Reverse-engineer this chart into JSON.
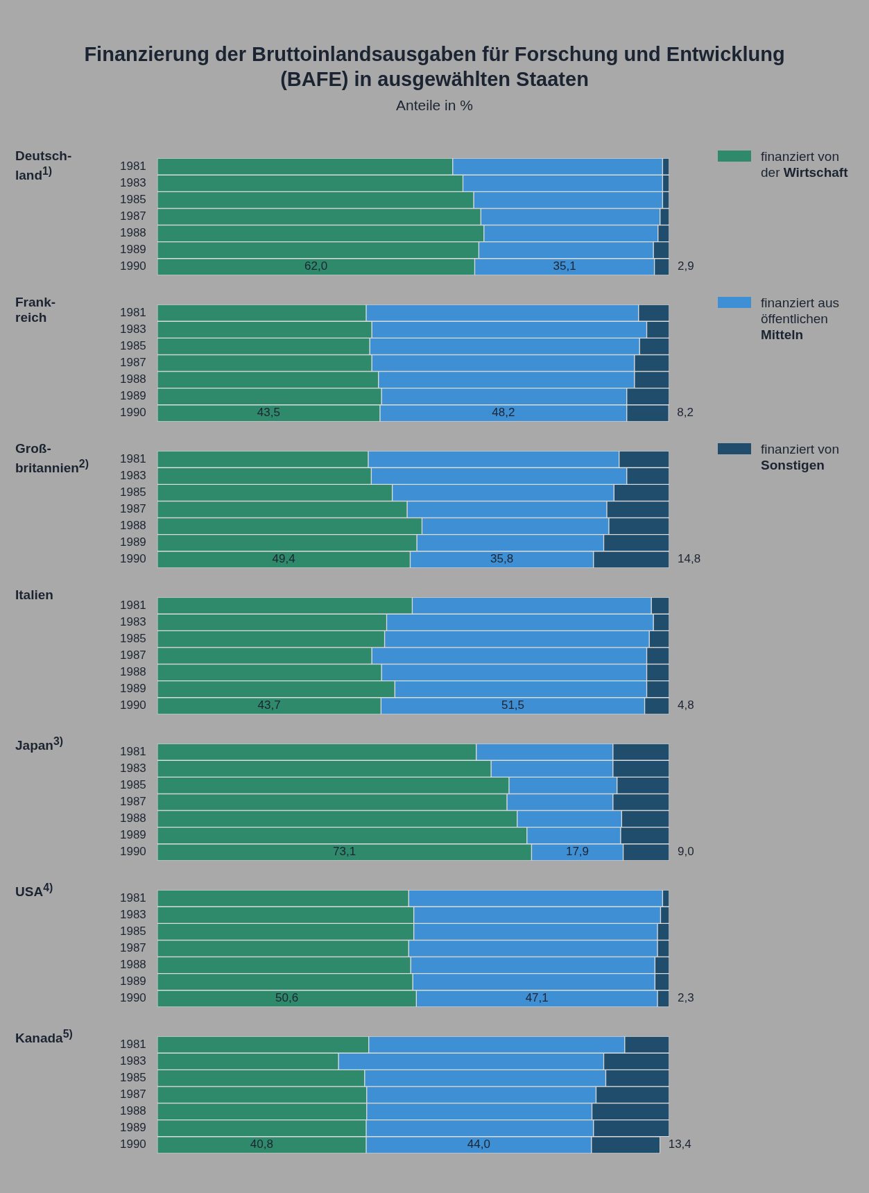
{
  "chart_data": [
    {
      "type": "bar",
      "title": "Finanzierung der Bruttoinlandsausgaben für Forschung und Entwicklung\n(BAFE) in ausgewählten Staaten",
      "subtitle": "Anteile in %",
      "ylabel": "Deutsch-\nland$^{1)}$",
      "orientation": "horizontal",
      "stacked": true,
      "legend": "right",
      "xlim": [
        0,
        100
      ],
      "categories": [
        "1981",
        "1983",
        "1985",
        "1987",
        "1988",
        "1989",
        "1990"
      ],
      "series": [
        {
          "name": "finanziert von der Wirtschaft",
          "color": "#2f8a6c",
          "values": [
            57.7,
            59.7,
            61.8,
            63.2,
            63.8,
            62.8,
            62.0
          ],
          "value_labels": [
            null,
            null,
            null,
            null,
            null,
            null,
            "62,0"
          ]
        },
        {
          "name": "finanziert aus öffentlichen Mitteln",
          "color": "#3e8fd4",
          "values": [
            41.0,
            39.0,
            36.9,
            35.0,
            34.0,
            34.1,
            35.1
          ],
          "value_labels": [
            null,
            null,
            null,
            null,
            null,
            null,
            "35,1"
          ]
        },
        {
          "name": "finanziert von Sonstigen",
          "color": "#1f4d6b",
          "values": [
            1.3,
            1.3,
            1.3,
            1.8,
            2.2,
            3.1,
            2.9
          ],
          "value_labels": [
            null,
            null,
            null,
            null,
            null,
            null,
            "2,9"
          ]
        }
      ]
    },
    {
      "type": "bar",
      "ylabel": "Frank-\nreich",
      "orientation": "horizontal",
      "stacked": true,
      "xlim": [
        0,
        100
      ],
      "categories": [
        "1981",
        "1983",
        "1985",
        "1987",
        "1988",
        "1989",
        "1990"
      ],
      "series": [
        {
          "color": "#2f8a6c",
          "values": [
            40.8,
            41.9,
            41.5,
            41.9,
            43.2,
            43.8,
            43.5
          ],
          "value_labels": [
            null,
            null,
            null,
            null,
            null,
            null,
            "43,5"
          ]
        },
        {
          "color": "#3e8fd4",
          "values": [
            53.2,
            53.7,
            52.7,
            51.3,
            50.0,
            47.9,
            48.2
          ],
          "value_labels": [
            null,
            null,
            null,
            null,
            null,
            null,
            "48,2"
          ]
        },
        {
          "color": "#1f4d6b",
          "values": [
            6.0,
            4.4,
            5.8,
            6.8,
            6.8,
            8.3,
            8.2
          ],
          "value_labels": [
            null,
            null,
            null,
            null,
            null,
            null,
            "8,2"
          ]
        }
      ]
    },
    {
      "type": "bar",
      "ylabel": "Groß-\nbritannien$^{2)}$",
      "orientation": "horizontal",
      "stacked": true,
      "xlim": [
        0,
        100
      ],
      "categories": [
        "1981",
        "1983",
        "1985",
        "1987",
        "1988",
        "1989",
        "1990"
      ],
      "series": [
        {
          "color": "#2f8a6c",
          "values": [
            41.2,
            41.8,
            45.9,
            48.8,
            51.7,
            50.7,
            49.4
          ],
          "value_labels": [
            null,
            null,
            null,
            null,
            null,
            null,
            "49,4"
          ]
        },
        {
          "color": "#3e8fd4",
          "values": [
            49.0,
            49.9,
            43.3,
            39.0,
            36.5,
            36.5,
            35.8
          ],
          "value_labels": [
            null,
            null,
            null,
            null,
            null,
            null,
            "35,8"
          ]
        },
        {
          "color": "#1f4d6b",
          "values": [
            9.8,
            8.3,
            10.8,
            12.2,
            11.8,
            12.8,
            14.8
          ],
          "value_labels": [
            null,
            null,
            null,
            null,
            null,
            null,
            "14,8"
          ]
        }
      ]
    },
    {
      "type": "bar",
      "ylabel": "Italien",
      "orientation": "horizontal",
      "stacked": true,
      "xlim": [
        0,
        100
      ],
      "categories": [
        "1981",
        "1983",
        "1985",
        "1987",
        "1988",
        "1989",
        "1990"
      ],
      "series": [
        {
          "color": "#2f8a6c",
          "values": [
            49.8,
            44.8,
            44.4,
            41.9,
            43.8,
            46.4,
            43.7
          ],
          "value_labels": [
            null,
            null,
            null,
            null,
            null,
            null,
            "43,7"
          ]
        },
        {
          "color": "#3e8fd4",
          "values": [
            46.7,
            52.1,
            51.7,
            53.7,
            51.8,
            49.2,
            51.5
          ],
          "value_labels": [
            null,
            null,
            null,
            null,
            null,
            null,
            "51,5"
          ]
        },
        {
          "color": "#1f4d6b",
          "values": [
            3.5,
            3.1,
            3.9,
            4.4,
            4.4,
            4.4,
            4.8
          ],
          "value_labels": [
            null,
            null,
            null,
            null,
            null,
            null,
            "4,8"
          ]
        }
      ]
    },
    {
      "type": "bar",
      "ylabel": "Japan$^{3)}$",
      "orientation": "horizontal",
      "stacked": true,
      "xlim": [
        0,
        100
      ],
      "categories": [
        "1981",
        "1983",
        "1985",
        "1987",
        "1988",
        "1989",
        "1990"
      ],
      "series": [
        {
          "color": "#2f8a6c",
          "values": [
            62.3,
            65.2,
            68.7,
            68.3,
            70.3,
            72.2,
            73.1
          ],
          "value_labels": [
            null,
            null,
            null,
            null,
            null,
            null,
            "73,1"
          ]
        },
        {
          "color": "#3e8fd4",
          "values": [
            26.7,
            23.8,
            21.1,
            20.7,
            20.4,
            18.3,
            17.9
          ],
          "value_labels": [
            null,
            null,
            null,
            null,
            null,
            null,
            "17,9"
          ]
        },
        {
          "color": "#1f4d6b",
          "values": [
            11.0,
            11.0,
            10.2,
            11.0,
            9.3,
            9.5,
            9.0
          ],
          "value_labels": [
            null,
            null,
            null,
            null,
            null,
            null,
            "9,0"
          ]
        }
      ]
    },
    {
      "type": "bar",
      "ylabel": "USA$^{4)}$",
      "orientation": "horizontal",
      "stacked": true,
      "xlim": [
        0,
        100
      ],
      "categories": [
        "1981",
        "1983",
        "1985",
        "1987",
        "1988",
        "1989",
        "1990"
      ],
      "series": [
        {
          "color": "#2f8a6c",
          "values": [
            49.1,
            50.1,
            50.1,
            49.1,
            49.5,
            49.9,
            50.6
          ],
          "value_labels": [
            null,
            null,
            null,
            null,
            null,
            null,
            "50,6"
          ]
        },
        {
          "color": "#3e8fd4",
          "values": [
            49.6,
            48.2,
            47.6,
            48.6,
            47.7,
            47.3,
            47.1
          ],
          "value_labels": [
            null,
            null,
            null,
            null,
            null,
            null,
            "47,1"
          ]
        },
        {
          "color": "#1f4d6b",
          "values": [
            1.3,
            1.7,
            2.3,
            2.3,
            2.8,
            2.8,
            2.3
          ],
          "value_labels": [
            null,
            null,
            null,
            null,
            null,
            null,
            "2,3"
          ]
        }
      ]
    },
    {
      "type": "bar",
      "ylabel": "Kanada$^{5)}$",
      "orientation": "horizontal",
      "stacked": true,
      "xlim": [
        0,
        100
      ],
      "categories": [
        "1981",
        "1983",
        "1985",
        "1987",
        "1988",
        "1989",
        "1990"
      ],
      "series": [
        {
          "color": "#2f8a6c",
          "values": [
            41.3,
            35.4,
            40.5,
            40.9,
            40.9,
            40.8,
            40.8
          ],
          "value_labels": [
            null,
            null,
            null,
            null,
            null,
            null,
            "40,8"
          ]
        },
        {
          "color": "#3e8fd4",
          "values": [
            50.0,
            51.8,
            47.1,
            44.8,
            44.0,
            44.4,
            44.0
          ],
          "value_labels": [
            null,
            null,
            null,
            null,
            null,
            null,
            "44,0"
          ]
        },
        {
          "color": "#1f4d6b",
          "values": [
            8.7,
            12.8,
            12.4,
            14.3,
            15.1,
            14.8,
            13.4
          ],
          "value_labels": [
            null,
            null,
            null,
            null,
            null,
            null,
            "13,4"
          ]
        }
      ]
    }
  ]
}
